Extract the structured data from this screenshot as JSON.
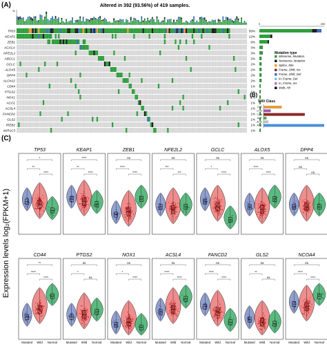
{
  "panel_labels": {
    "a": "(A)",
    "b": "(B)",
    "c": "(C)"
  },
  "oncoprint": {
    "title": "Altered in 392 (93.56%) of 419 samples.",
    "genes": [
      "TP53",
      "KEAP1",
      "ZEB1",
      "ACACA",
      "NFE2L2",
      "ABCC1",
      "GCLC",
      "ALOX5",
      "DPP4",
      "ALOX12",
      "CD44",
      "PTGS2",
      "NOX1",
      "ACO1",
      "ACSL4",
      "FANCD2",
      "GLS2",
      "IREB2",
      "AKR1C3"
    ],
    "percents": [
      "58%",
      "12%",
      "9%",
      "3%",
      "3%",
      "2%",
      "2%",
      "2%",
      "2%",
      "2%",
      "1%",
      "1%",
      "1%",
      "1%",
      "1%",
      "1%",
      "1%",
      "1%",
      "1%"
    ],
    "gene_fraction": [
      0.58,
      0.12,
      0.09,
      0.03,
      0.03,
      0.02,
      0.02,
      0.02,
      0.02,
      0.02,
      0.01,
      0.01,
      0.01,
      0.01,
      0.01,
      0.01,
      0.01,
      0.01,
      0.01
    ],
    "top_axis_max": "11",
    "bar_axis_max": "200",
    "legend_title": "Mutation type",
    "legend": [
      {
        "label": "Missense_Mutation",
        "color": "#2f9e3e"
      },
      {
        "label": "Nonsense_Mutation",
        "color": "#1f1f1f"
      },
      {
        "label": "Splice_Site",
        "color": "#f0a030"
      },
      {
        "label": "Frame_Shift_Ins",
        "color": "#8b2a2a"
      },
      {
        "label": "Frame_Shift_Del",
        "color": "#3a6fc4"
      },
      {
        "label": "In_Frame_Del",
        "color": "#7ec8e3"
      },
      {
        "label": "In_Frame_Ins",
        "color": "#c070c0"
      },
      {
        "label": "Multi_Hit",
        "color": "#111111"
      }
    ]
  },
  "snv": {
    "title": "SNV Class",
    "classes": [
      "C>T",
      "C>G",
      "C>A",
      "A>T",
      "A>G",
      "A>C"
    ],
    "values": [
      0.3,
      0.12,
      0.68,
      0.05,
      0.08,
      1.0
    ],
    "colors": [
      "#e0a040",
      "#9b59b6",
      "#8b2a2a",
      "#4caf50",
      "#c0c0c0",
      "#4a90d9"
    ]
  },
  "violins": {
    "y_label": "Expression levels log₂(FPKM+1)",
    "groups": [
      "Mutated",
      "Wild",
      "Normal"
    ],
    "colors": {
      "mutated": "#7f8fc8",
      "wild": "#e03030",
      "normal": "#3fae6a"
    },
    "panels": [
      {
        "gene": "TP53",
        "sig": [
          "*",
          "**",
          "****"
        ],
        "mut": 0.55,
        "wild": 0.5,
        "norm": 0.38
      },
      {
        "gene": "KEAP1",
        "sig": [
          "****",
          "**",
          "****"
        ],
        "mut": 0.6,
        "wild": 0.55,
        "norm": 0.5
      },
      {
        "gene": "ZEB1",
        "sig": [
          "ns",
          "****",
          "****"
        ],
        "mut": 0.3,
        "wild": 0.35,
        "norm": 0.6
      },
      {
        "gene": "NFE2L2",
        "sig": [
          "ns",
          "***",
          "***"
        ],
        "mut": 0.45,
        "wild": 0.4,
        "norm": 0.45
      },
      {
        "gene": "GCLC",
        "sig": [
          "ns",
          "*",
          "****"
        ],
        "mut": 0.55,
        "wild": 0.45,
        "norm": 0.2
      },
      {
        "gene": "ALOX5",
        "sig": [
          "ns",
          "****",
          "****"
        ],
        "mut": 0.45,
        "wild": 0.4,
        "norm": 0.6
      },
      {
        "gene": "DPP4",
        "sig": [
          "ns",
          "ns",
          "ns"
        ],
        "mut": 0.45,
        "wild": 0.45,
        "norm": 0.45
      },
      {
        "gene": "CD44",
        "sig": [
          "**",
          "****",
          "****"
        ],
        "mut": 0.35,
        "wild": 0.5,
        "norm": 0.75
      },
      {
        "gene": "PTGS2",
        "sig": [
          "ns",
          "*",
          "ns"
        ],
        "mut": 0.35,
        "wild": 0.4,
        "norm": 0.45
      },
      {
        "gene": "NOX1",
        "sig": [
          "ns",
          "*",
          "****"
        ],
        "mut": 0.2,
        "wild": 0.25,
        "norm": 0.15
      },
      {
        "gene": "ACSL4",
        "sig": [
          "ns",
          "****",
          "****"
        ],
        "mut": 0.45,
        "wild": 0.5,
        "norm": 0.7
      },
      {
        "gene": "FANCD2",
        "sig": [
          "ns",
          "****",
          "****"
        ],
        "mut": 0.55,
        "wild": 0.45,
        "norm": 0.25
      },
      {
        "gene": "GLS2",
        "sig": [
          "ns",
          "**",
          "ns"
        ],
        "mut": 0.3,
        "wild": 0.25,
        "norm": 0.22
      },
      {
        "gene": "NCOA4",
        "sig": [
          "ns",
          "****",
          "****"
        ],
        "mut": 0.6,
        "wild": 0.55,
        "norm": 0.75
      }
    ]
  }
}
